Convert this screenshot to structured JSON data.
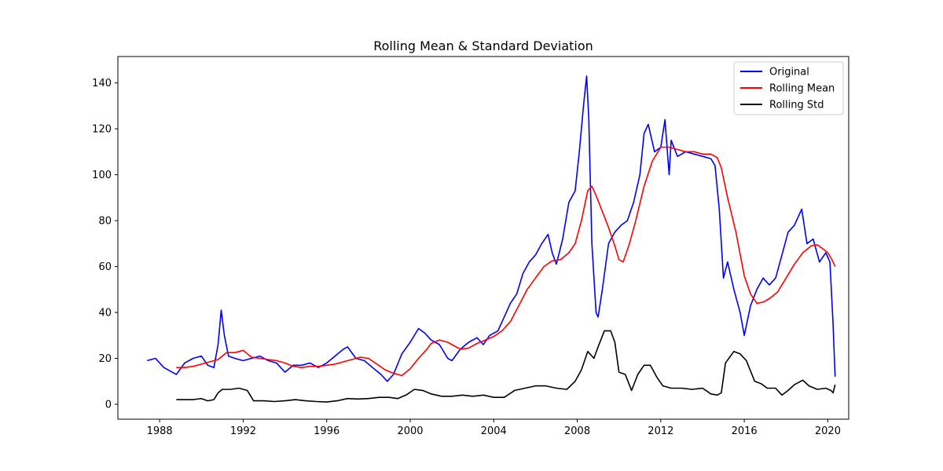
{
  "chart_data": {
    "type": "line",
    "title": "Rolling Mean & Standard Deviation",
    "xlabel": "",
    "ylabel": "",
    "xlim": [
      1986.0,
      2021.0
    ],
    "ylim": [
      -6.5,
      151.5
    ],
    "x_ticks": [
      1988,
      1992,
      1996,
      2000,
      2004,
      2008,
      2012,
      2016,
      2020
    ],
    "y_ticks": [
      0,
      20,
      40,
      60,
      80,
      100,
      120,
      140
    ],
    "grid": false,
    "legend_position": "top-right",
    "series": [
      {
        "name": "Original",
        "color": "#0000ff",
        "x": [
          1987.4,
          1987.8,
          1988.2,
          1988.6,
          1988.8,
          1989.2,
          1989.6,
          1990.0,
          1990.3,
          1990.6,
          1990.8,
          1990.95,
          1991.1,
          1991.3,
          1991.6,
          1992.0,
          1992.4,
          1992.8,
          1993.2,
          1993.6,
          1994.0,
          1994.4,
          1994.8,
          1995.2,
          1995.6,
          1996.0,
          1996.4,
          1996.8,
          1997.0,
          1997.4,
          1997.8,
          1998.2,
          1998.6,
          1998.9,
          1999.2,
          1999.6,
          2000.0,
          2000.4,
          2000.7,
          2001.0,
          2001.4,
          2001.8,
          2002.0,
          2002.4,
          2002.8,
          2003.2,
          2003.5,
          2003.8,
          2004.2,
          2004.5,
          2004.8,
          2005.1,
          2005.4,
          2005.7,
          2006.0,
          2006.3,
          2006.6,
          2006.8,
          2007.0,
          2007.3,
          2007.6,
          2007.9,
          2008.1,
          2008.3,
          2008.45,
          2008.55,
          2008.7,
          2008.9,
          2009.0,
          2009.2,
          2009.5,
          2009.8,
          2010.1,
          2010.4,
          2010.7,
          2011.0,
          2011.2,
          2011.4,
          2011.7,
          2012.0,
          2012.2,
          2012.4,
          2012.5,
          2012.8,
          2013.2,
          2013.6,
          2014.0,
          2014.4,
          2014.6,
          2014.8,
          2015.0,
          2015.2,
          2015.5,
          2015.8,
          2016.0,
          2016.3,
          2016.6,
          2016.9,
          2017.2,
          2017.5,
          2017.8,
          2018.1,
          2018.4,
          2018.75,
          2019.0,
          2019.3,
          2019.6,
          2019.9,
          2020.1,
          2020.25,
          2020.35
        ],
        "values": [
          19,
          20,
          16,
          14,
          13,
          18,
          20,
          21,
          17,
          16,
          26,
          41,
          30,
          21,
          20,
          19,
          20,
          21,
          19,
          18,
          14,
          17,
          17,
          18,
          16,
          18,
          21,
          24,
          25,
          20,
          19,
          16,
          13,
          10,
          13,
          22,
          27,
          33,
          31,
          28,
          26,
          20,
          19,
          24,
          27,
          29,
          26,
          30,
          32,
          38,
          44,
          48,
          57,
          62,
          65,
          70,
          74,
          66,
          61,
          72,
          88,
          93,
          110,
          130,
          143,
          125,
          70,
          40,
          38,
          50,
          70,
          75,
          78,
          80,
          88,
          100,
          118,
          122,
          110,
          112,
          124,
          100,
          115,
          108,
          110,
          109,
          108,
          107,
          104,
          85,
          55,
          62,
          50,
          40,
          30,
          43,
          50,
          55,
          52,
          55,
          65,
          75,
          78,
          85,
          70,
          72,
          62,
          66,
          62,
          35,
          12
        ]
      },
      {
        "name": "Rolling Mean",
        "color": "#ff0000",
        "x": [
          1988.8,
          1989.2,
          1989.6,
          1990.0,
          1990.4,
          1990.8,
          1991.2,
          1991.6,
          1992.0,
          1992.4,
          1992.8,
          1993.2,
          1993.6,
          1994.0,
          1994.4,
          1994.8,
          1995.2,
          1995.6,
          1996.0,
          1996.4,
          1996.8,
          1997.2,
          1997.6,
          1998.0,
          1998.4,
          1998.8,
          1999.2,
          1999.6,
          2000.0,
          2000.4,
          2000.8,
          2001.0,
          2001.4,
          2001.8,
          2002.0,
          2002.4,
          2002.8,
          2003.2,
          2003.6,
          2004.0,
          2004.4,
          2004.8,
          2005.2,
          2005.6,
          2006.0,
          2006.4,
          2006.8,
          2007.2,
          2007.6,
          2007.9,
          2008.2,
          2008.5,
          2008.7,
          2008.9,
          2009.2,
          2009.5,
          2009.8,
          2010.0,
          2010.2,
          2010.5,
          2010.8,
          2011.2,
          2011.6,
          2012.0,
          2012.4,
          2012.8,
          2013.2,
          2013.6,
          2014.0,
          2014.4,
          2014.7,
          2014.9,
          2015.2,
          2015.6,
          2016.0,
          2016.3,
          2016.6,
          2016.9,
          2017.2,
          2017.6,
          2018.0,
          2018.4,
          2018.8,
          2019.2,
          2019.5,
          2019.8,
          2020.0,
          2020.2,
          2020.35
        ],
        "values": [
          16,
          16,
          16.5,
          17.5,
          18.5,
          19.5,
          22.5,
          22.5,
          23.5,
          20.5,
          20,
          19.5,
          19,
          18,
          16.5,
          16,
          16.5,
          16.5,
          17,
          17.5,
          18.5,
          19.5,
          20.5,
          20,
          17.5,
          15,
          13.5,
          12.5,
          15.5,
          20,
          24,
          26.5,
          28,
          27,
          26,
          24,
          24.5,
          26.5,
          28,
          29.5,
          32,
          36,
          43,
          50,
          55,
          60,
          62.5,
          63,
          66,
          70,
          80,
          93,
          95,
          91,
          84,
          77,
          69,
          63,
          62,
          70,
          80,
          95,
          106,
          112,
          112,
          111,
          110,
          110,
          109,
          109,
          107.5,
          103,
          90,
          75,
          56,
          48,
          44,
          44.5,
          46,
          49,
          55,
          61,
          66,
          69,
          69.5,
          67.5,
          66,
          63,
          60
        ]
      },
      {
        "name": "Rolling Std",
        "color": "#000000",
        "x": [
          1988.8,
          1989.2,
          1989.6,
          1990.0,
          1990.3,
          1990.6,
          1990.8,
          1991.0,
          1991.4,
          1991.8,
          1992.2,
          1992.5,
          1993.0,
          1993.5,
          1994.0,
          1994.5,
          1995.0,
          1995.5,
          1996.0,
          1996.5,
          1997.0,
          1997.5,
          1998.0,
          1998.5,
          1999.0,
          1999.4,
          1999.8,
          2000.2,
          2000.6,
          2001.0,
          2001.5,
          2002.0,
          2002.5,
          2003.0,
          2003.5,
          2004.0,
          2004.5,
          2005.0,
          2005.5,
          2006.0,
          2006.5,
          2007.0,
          2007.5,
          2007.9,
          2008.2,
          2008.5,
          2008.8,
          2009.0,
          2009.3,
          2009.6,
          2009.8,
          2010.0,
          2010.3,
          2010.6,
          2010.9,
          2011.2,
          2011.5,
          2011.8,
          2012.1,
          2012.5,
          2013.0,
          2013.5,
          2014.0,
          2014.4,
          2014.7,
          2014.9,
          2015.1,
          2015.5,
          2015.8,
          2016.1,
          2016.5,
          2016.8,
          2017.1,
          2017.5,
          2017.8,
          2018.1,
          2018.4,
          2018.8,
          2019.1,
          2019.5,
          2019.9,
          2020.15,
          2020.25,
          2020.35
        ],
        "values": [
          2,
          2,
          2,
          2.5,
          1.5,
          2,
          5,
          6.5,
          6.5,
          7,
          6,
          1.5,
          1.5,
          1.2,
          1.5,
          2,
          1.5,
          1.2,
          1,
          1.5,
          2.5,
          2.3,
          2.5,
          3,
          3,
          2.5,
          4,
          6.5,
          6,
          4.5,
          3.5,
          3.5,
          4,
          3.5,
          4,
          3,
          3,
          6,
          7,
          8,
          8,
          7,
          6.5,
          10,
          15,
          23,
          20,
          25,
          32,
          32,
          27,
          14,
          13,
          6,
          13,
          17,
          17,
          12,
          8,
          7,
          7,
          6.5,
          7,
          4.5,
          4,
          5,
          18,
          23,
          22,
          19,
          10,
          9,
          7,
          7,
          4,
          6,
          8.5,
          10.5,
          8,
          6.5,
          7,
          6,
          5,
          8.5
        ]
      }
    ]
  }
}
